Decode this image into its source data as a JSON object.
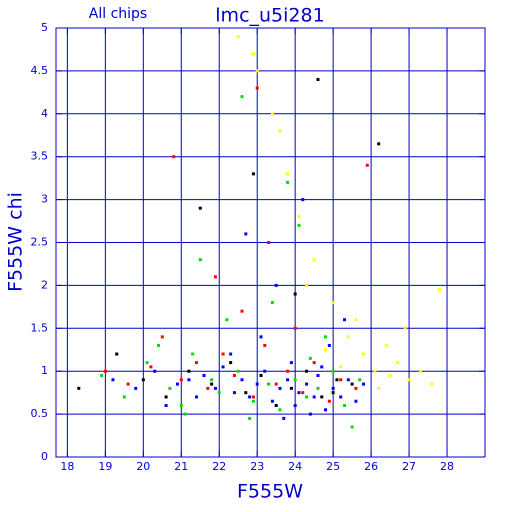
{
  "chart_data": {
    "type": "scatter",
    "title": "lmc_u5i281",
    "subtitle": "All chips",
    "x_label": "F555W",
    "y_label": "F555W chi",
    "xlim": [
      17.7,
      29
    ],
    "ylim": [
      0,
      5
    ],
    "xticks": [
      18,
      19,
      20,
      21,
      22,
      23,
      24,
      25,
      26,
      27,
      28
    ],
    "yticks": [
      0,
      0.5,
      1,
      1.5,
      2,
      2.5,
      3,
      3.5,
      4,
      4.5,
      5
    ],
    "grid": true,
    "axis_color": "#0000cc",
    "series": [
      {
        "color": "#0000ff",
        "x": [
          19.2,
          19.8,
          20.3,
          20.9,
          21.2,
          21.6,
          21.9,
          22.1,
          22.4,
          22.6,
          22.8,
          23.0,
          23.2,
          23.4,
          23.6,
          23.8,
          24.0,
          24.1,
          24.3,
          24.5,
          24.6,
          24.8,
          25.0,
          25.2,
          25.4,
          25.6,
          25.8,
          22.3,
          23.1,
          23.9,
          24.4,
          24.9,
          23.5,
          22.7,
          24.2,
          25.3,
          21.4,
          20.6,
          23.7,
          24.7
        ],
        "values": [
          0.9,
          0.8,
          1.0,
          0.85,
          0.9,
          0.95,
          0.8,
          1.05,
          0.75,
          0.9,
          0.7,
          0.85,
          1.0,
          0.65,
          0.8,
          0.9,
          0.6,
          0.75,
          0.85,
          0.7,
          0.95,
          0.55,
          0.8,
          0.7,
          0.9,
          0.65,
          0.85,
          1.2,
          1.4,
          1.1,
          0.5,
          1.3,
          2.0,
          2.6,
          3.0,
          1.6,
          0.7,
          0.6,
          0.45,
          1.05
        ]
      },
      {
        "color": "#00dd00",
        "x": [
          18.9,
          19.5,
          20.1,
          20.7,
          21.0,
          21.3,
          21.8,
          22.0,
          22.5,
          22.9,
          23.3,
          23.6,
          24.0,
          24.3,
          24.6,
          25.0,
          25.3,
          25.7,
          21.5,
          22.2,
          23.8,
          24.8,
          20.4,
          25.5,
          22.6,
          23.4,
          24.1,
          21.1,
          22.8,
          24.4
        ],
        "values": [
          0.95,
          0.7,
          1.1,
          0.8,
          0.6,
          1.2,
          0.9,
          0.75,
          1.0,
          0.65,
          0.85,
          0.55,
          0.9,
          0.7,
          0.8,
          1.0,
          0.6,
          0.9,
          2.3,
          1.6,
          3.2,
          1.4,
          1.3,
          0.35,
          4.2,
          1.8,
          2.7,
          0.5,
          0.45,
          1.15
        ]
      },
      {
        "color": "#ff0000",
        "x": [
          19.0,
          19.6,
          20.2,
          20.5,
          21.0,
          21.4,
          21.7,
          22.1,
          22.4,
          22.9,
          23.2,
          23.5,
          23.8,
          24.2,
          24.5,
          24.9,
          25.2,
          25.6,
          20.8,
          21.9,
          22.6,
          23.3,
          24.0,
          25.9,
          23.0
        ],
        "values": [
          1.0,
          0.85,
          1.05,
          1.4,
          0.9,
          1.1,
          0.8,
          1.2,
          0.95,
          0.7,
          1.3,
          0.85,
          1.0,
          0.75,
          1.1,
          0.65,
          0.9,
          0.8,
          3.5,
          2.1,
          1.7,
          2.5,
          1.5,
          3.4,
          4.3
        ]
      },
      {
        "color": "#000000",
        "x": [
          18.3,
          19.3,
          20.0,
          20.6,
          21.2,
          21.8,
          22.3,
          22.7,
          23.1,
          23.5,
          23.9,
          24.3,
          24.7,
          25.1,
          25.5,
          21.5,
          22.9,
          24.0,
          24.6,
          26.2,
          25.0
        ],
        "values": [
          0.8,
          1.2,
          0.9,
          0.7,
          1.0,
          0.85,
          1.1,
          0.75,
          0.95,
          0.6,
          0.8,
          1.0,
          0.7,
          0.9,
          0.85,
          2.9,
          3.3,
          1.9,
          4.4,
          3.65,
          0.75
        ]
      },
      {
        "color": "#ffff00",
        "x": [
          22.5,
          23.0,
          23.4,
          23.8,
          24.1,
          24.5,
          25.0,
          25.4,
          25.8,
          26.1,
          26.4,
          26.7,
          27.0,
          27.3,
          27.6,
          26.9,
          26.2,
          25.6,
          24.8,
          23.6,
          22.9,
          24.3,
          27.8,
          26.5,
          25.2
        ],
        "values": [
          4.9,
          4.5,
          4.0,
          3.3,
          2.8,
          2.3,
          1.8,
          1.4,
          1.2,
          1.0,
          1.3,
          1.1,
          0.9,
          1.0,
          0.85,
          1.5,
          0.8,
          1.6,
          1.25,
          3.8,
          4.7,
          2.0,
          1.95,
          0.95,
          1.05
        ]
      }
    ]
  }
}
